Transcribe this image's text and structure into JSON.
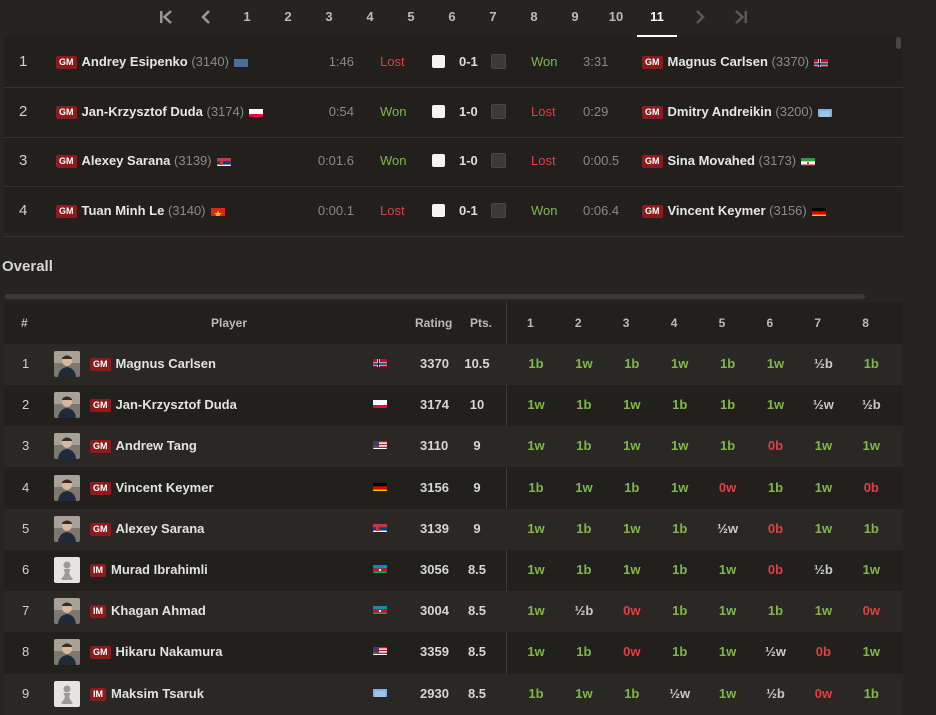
{
  "rounds": {
    "labels": [
      "1",
      "2",
      "3",
      "4",
      "5",
      "6",
      "7",
      "8",
      "9",
      "10",
      "11"
    ],
    "active_index": 10
  },
  "pairings": [
    {
      "board": "1",
      "white": {
        "title": "GM",
        "name": "Andrey Esipenko",
        "rating": "(3140)",
        "flag": "unknown"
      },
      "white_time": "1:46",
      "white_result": "Lost",
      "score": "0-1",
      "black_result": "Won",
      "black_time": "3:31",
      "black": {
        "title": "GM",
        "name": "Magnus Carlsen",
        "rating": "(3370)",
        "flag": "norway"
      }
    },
    {
      "board": "2",
      "white": {
        "title": "GM",
        "name": "Jan-Krzysztof Duda",
        "rating": "(3174)",
        "flag": "poland"
      },
      "white_time": "0:54",
      "white_result": "Won",
      "score": "1-0",
      "black_result": "Lost",
      "black_time": "0:29",
      "black": {
        "title": "GM",
        "name": "Dmitry Andreikin",
        "rating": "(3200)",
        "flag": "fide"
      }
    },
    {
      "board": "3",
      "white": {
        "title": "GM",
        "name": "Alexey Sarana",
        "rating": "(3139)",
        "flag": "serbia"
      },
      "white_time": "0:01.6",
      "white_result": "Won",
      "score": "1-0",
      "black_result": "Lost",
      "black_time": "0:00.5",
      "black": {
        "title": "GM",
        "name": "Sina Movahed",
        "rating": "(3173)",
        "flag": "iran"
      }
    },
    {
      "board": "4",
      "white": {
        "title": "GM",
        "name": "Tuan Minh Le",
        "rating": "(3140)",
        "flag": "vietnam"
      },
      "white_time": "0:00.1",
      "white_result": "Lost",
      "score": "0-1",
      "black_result": "Won",
      "black_time": "0:06.4",
      "black": {
        "title": "GM",
        "name": "Vincent Keymer",
        "rating": "(3156)",
        "flag": "germany"
      }
    }
  ],
  "overall": {
    "title": "Overall",
    "headers": {
      "rank": "#",
      "player": "Player",
      "rating": "Rating",
      "points": "Pts.",
      "rounds": [
        "1",
        "2",
        "3",
        "4",
        "5",
        "6",
        "7",
        "8"
      ]
    },
    "rows": [
      {
        "rank": "1",
        "title": "GM",
        "name": "Magnus Carlsen",
        "flag": "norway",
        "avatar": "photo",
        "rating": "3370",
        "points": "10.5",
        "games": [
          "1b",
          "1w",
          "1b",
          "1w",
          "1b",
          "1w",
          "½b",
          "1b"
        ]
      },
      {
        "rank": "2",
        "title": "GM",
        "name": "Jan-Krzysztof Duda",
        "flag": "poland",
        "avatar": "photo",
        "rating": "3174",
        "points": "10",
        "games": [
          "1w",
          "1b",
          "1w",
          "1b",
          "1b",
          "1w",
          "½w",
          "½b"
        ]
      },
      {
        "rank": "3",
        "title": "GM",
        "name": "Andrew Tang",
        "flag": "usa",
        "avatar": "photo",
        "rating": "3110",
        "points": "9",
        "games": [
          "1w",
          "1b",
          "1w",
          "1w",
          "1b",
          "0b",
          "1w",
          "1w"
        ]
      },
      {
        "rank": "4",
        "title": "GM",
        "name": "Vincent Keymer",
        "flag": "germany",
        "avatar": "photo",
        "rating": "3156",
        "points": "9",
        "games": [
          "1b",
          "1w",
          "1b",
          "1w",
          "0w",
          "1b",
          "1w",
          "0b"
        ]
      },
      {
        "rank": "5",
        "title": "GM",
        "name": "Alexey Sarana",
        "flag": "serbia",
        "avatar": "photo",
        "rating": "3139",
        "points": "9",
        "games": [
          "1w",
          "1b",
          "1w",
          "1b",
          "½w",
          "0b",
          "1w",
          "1b"
        ]
      },
      {
        "rank": "6",
        "title": "IM",
        "name": "Murad Ibrahimli",
        "flag": "azerbaijan",
        "avatar": "pawn",
        "rating": "3056",
        "points": "8.5",
        "games": [
          "1w",
          "1b",
          "1w",
          "1b",
          "1w",
          "0b",
          "½b",
          "1w"
        ]
      },
      {
        "rank": "7",
        "title": "IM",
        "name": "Khagan Ahmad",
        "flag": "azerbaijan",
        "avatar": "photo",
        "rating": "3004",
        "points": "8.5",
        "games": [
          "1w",
          "½b",
          "0w",
          "1b",
          "1w",
          "1b",
          "1w",
          "0w"
        ]
      },
      {
        "rank": "8",
        "title": "GM",
        "name": "Hikaru Nakamura",
        "flag": "usa",
        "avatar": "photo",
        "rating": "3359",
        "points": "8.5",
        "games": [
          "1w",
          "1b",
          "0w",
          "1b",
          "1w",
          "½w",
          "0b",
          "1w"
        ]
      },
      {
        "rank": "9",
        "title": "IM",
        "name": "Maksim Tsaruk",
        "flag": "fide",
        "avatar": "pawn",
        "rating": "2930",
        "points": "8.5",
        "games": [
          "1b",
          "1w",
          "1b",
          "½w",
          "1w",
          "½b",
          "0w",
          "1b"
        ]
      }
    ]
  },
  "colors": {
    "win": "#81b64c",
    "loss": "#e04040",
    "badge": "#8e1b1b"
  }
}
